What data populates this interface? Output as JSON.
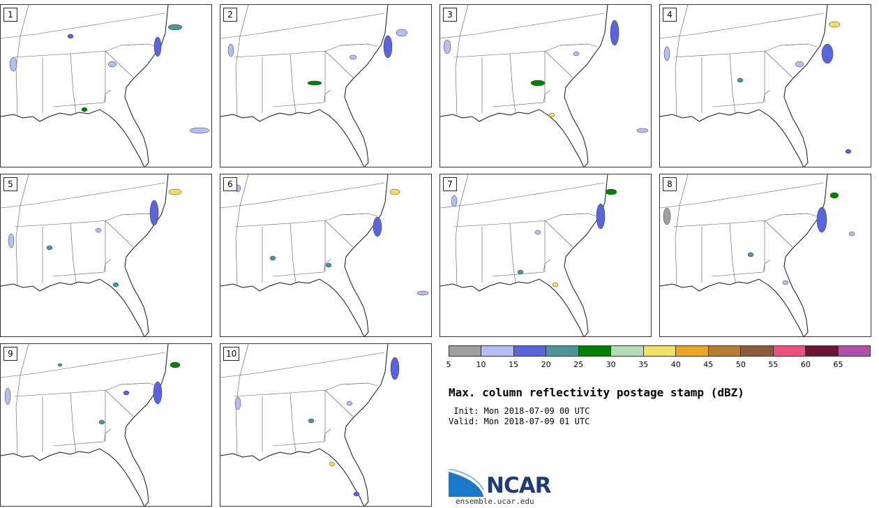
{
  "panels": [
    {
      "label": "1"
    },
    {
      "label": "2"
    },
    {
      "label": "3"
    },
    {
      "label": "4"
    },
    {
      "label": "5"
    },
    {
      "label": "6"
    },
    {
      "label": "7"
    },
    {
      "label": "8"
    },
    {
      "label": "9"
    },
    {
      "label": "10"
    }
  ],
  "colorbar": {
    "colors": [
      "#a0a0a0",
      "#b4bef0",
      "#5a64dc",
      "#4b969b",
      "#008200",
      "#b4dcb4",
      "#f0e164",
      "#eba523",
      "#b97d32",
      "#8c5a3c",
      "#f0507d",
      "#6e1437",
      "#af50aa"
    ],
    "ticks": [
      "5",
      "10",
      "15",
      "20",
      "25",
      "30",
      "35",
      "40",
      "45",
      "50",
      "55",
      "60",
      "65"
    ]
  },
  "title": "Max. column reflectivity postage stamp (dBZ)",
  "init_line": " Init: Mon 2018-07-09 00 UTC",
  "valid_line": "Valid: Mon 2018-07-09 01 UTC",
  "logo": {
    "text": "NCAR",
    "url": "ensemble.ucar.edu",
    "primary_color": "#1f3c78",
    "accent_color": "#1a78c8"
  }
}
